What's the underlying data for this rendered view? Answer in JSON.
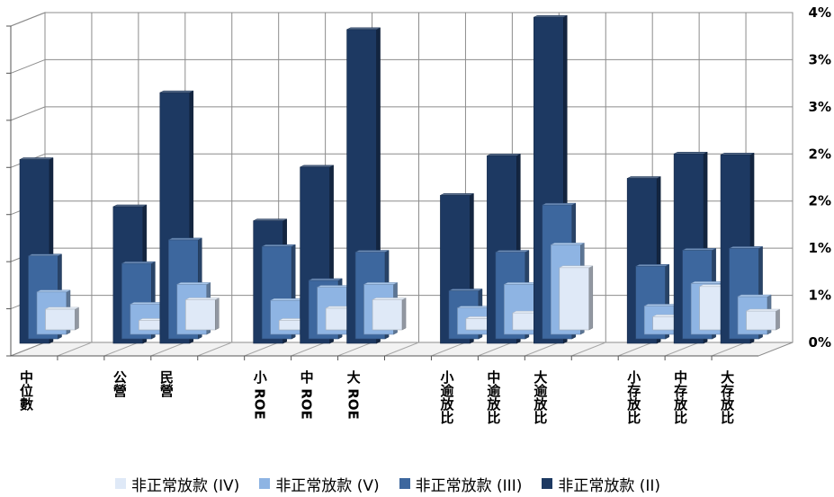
{
  "chart_data": {
    "type": "bar",
    "title": "",
    "xlabel": "",
    "ylabel": "",
    "ylim": [
      0,
      3.5
    ],
    "y_tick_values": [
      0,
      0.5,
      1,
      1.5,
      2,
      2.5,
      3,
      3.5
    ],
    "y_tick_labels": [
      "0%",
      "1%",
      "1%",
      "2%",
      "2%",
      "3%",
      "3%",
      "4%"
    ],
    "grid": true,
    "three_d": true,
    "legend_position": "bottom",
    "groups": [
      {
        "name": "group-median",
        "categories": [
          {
            "label": "中位數"
          }
        ]
      },
      {
        "name": "group-ownership",
        "categories": [
          {
            "label": "公營"
          },
          {
            "label": "民營"
          }
        ]
      },
      {
        "name": "group-roe",
        "categories": [
          {
            "label": "小 ROE"
          },
          {
            "label": "中 ROE"
          },
          {
            "label": "大 ROE"
          }
        ]
      },
      {
        "name": "group-overdue",
        "categories": [
          {
            "label": "小逾放比"
          },
          {
            "label": "中逾放比"
          },
          {
            "label": "大逾放比"
          }
        ]
      },
      {
        "name": "group-deposit",
        "categories": [
          {
            "label": "小存放比"
          },
          {
            "label": "中存放比"
          },
          {
            "label": "大存放比"
          }
        ]
      }
    ],
    "categories": [
      "中位數",
      "公營",
      "民營",
      "小 ROE",
      "中 ROE",
      "大 ROE",
      "小逾放比",
      "中逾放比",
      "大逾放比",
      "小存放比",
      "中存放比",
      "大存放比"
    ],
    "series": [
      {
        "name": "非正常放款 (IV)",
        "color": "#dfe9f7",
        "values": [
          0.22,
          0.1,
          0.32,
          0.1,
          0.23,
          0.32,
          0.12,
          0.18,
          0.66,
          0.14,
          0.46,
          0.2
        ]
      },
      {
        "name": "非正常放款 (V)",
        "color": "#8eb4e3",
        "values": [
          0.45,
          0.32,
          0.53,
          0.36,
          0.5,
          0.53,
          0.28,
          0.53,
          0.95,
          0.3,
          0.54,
          0.4
        ]
      },
      {
        "name": "非正常放款 (III)",
        "color": "#3d679e",
        "values": [
          0.88,
          0.8,
          1.05,
          0.98,
          0.62,
          0.92,
          0.51,
          0.92,
          1.42,
          0.77,
          0.94,
          0.96
        ]
      },
      {
        "name": "非正常放款 (II)",
        "color": "#1d3962",
        "values": [
          1.95,
          1.45,
          2.66,
          1.3,
          1.87,
          3.33,
          1.57,
          1.99,
          3.46,
          1.75,
          2.01,
          2.0
        ]
      }
    ]
  }
}
